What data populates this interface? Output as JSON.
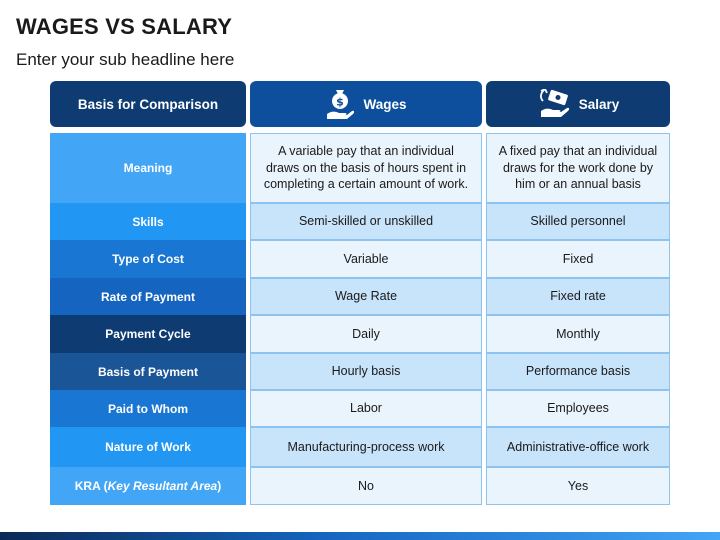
{
  "title": "WAGES VS SALARY",
  "subtitle": "Enter your sub headline here",
  "header": {
    "basis": "Basis for Comparison",
    "wages": "Wages",
    "salary": "Salary",
    "wages_icon": "money-bag-hand-icon",
    "salary_icon": "cash-hand-icon"
  },
  "rows": [
    {
      "basis": "Meaning",
      "wages": "A variable pay that an individual draws on the basis of hours spent in completing a certain amount of work.",
      "salary": "A fixed pay that an individual draws for the work done by him or an annual basis",
      "color": "#42a5f5"
    },
    {
      "basis": "Skills",
      "wages": "Semi-skilled or unskilled",
      "salary": "Skilled personnel",
      "color": "#2196f3"
    },
    {
      "basis": "Type of Cost",
      "wages": "Variable",
      "salary": "Fixed",
      "color": "#1976d2"
    },
    {
      "basis": "Rate of Payment",
      "wages": "Wage Rate",
      "salary": "Fixed rate",
      "color": "#1565c0"
    },
    {
      "basis": "Payment Cycle",
      "wages": "Daily",
      "salary": "Monthly",
      "color": "#0d3b72"
    },
    {
      "basis": "Basis of Payment",
      "wages": "Hourly basis",
      "salary": "Performance basis",
      "color": "#1a5597"
    },
    {
      "basis": "Paid to Whom",
      "wages": "Labor",
      "salary": "Employees",
      "color": "#1976d2"
    },
    {
      "basis": "Nature of Work",
      "wages": "Manufacturing-process work",
      "salary": "Administrative-office work",
      "color": "#2196f3"
    },
    {
      "basis_prefix": "KRA (",
      "basis_italic": "Key Resultant Area",
      "basis_suffix": ")",
      "wages": "No",
      "salary": "Yes",
      "color": "#42a5f5"
    }
  ]
}
